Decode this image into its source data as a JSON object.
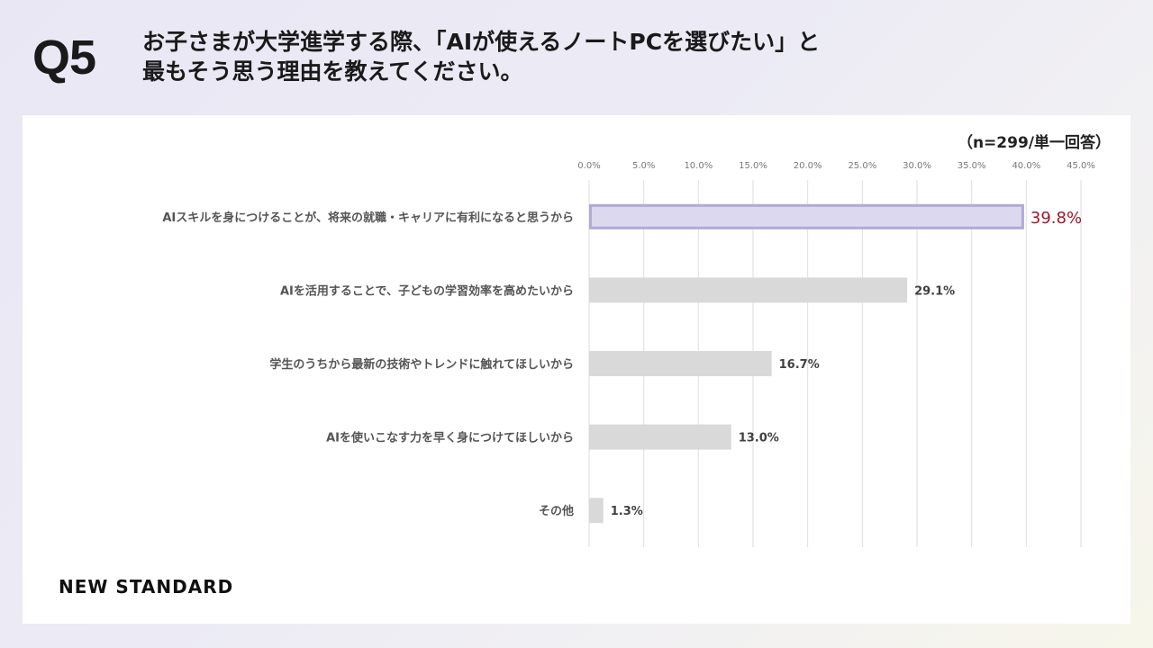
{
  "header": {
    "question_no": "Q5",
    "title_line1": "お子さまが大学進学する際、「AIが使えるノートPCを選びたい」と",
    "title_line2": "最もそう思う理由を教えてください。"
  },
  "panel": {
    "sample_note": "（n=299/単一回答）",
    "brand": "NEW STANDARD"
  },
  "colors": {
    "highlight_fill": "#dcd8ee",
    "highlight_border": "#b1a9d6",
    "highlight_label": "#a3162a",
    "bar_fill": "#d9d9d9",
    "grid": "#dedede",
    "tick_text": "#777777",
    "label_text": "#555555",
    "value_text": "#404040"
  },
  "chart_data": {
    "type": "bar",
    "orientation": "horizontal",
    "categories": [
      "AIスキルを身につけることが、将来の就職・キャリアに有利になると思うから",
      "AIを活用することで、子どもの学習効率を高めたいから",
      "学生のうちから最新の技術やトレンドに触れてほしいから",
      "AIを使いこなす力を早く身につけてほしいから",
      "その他"
    ],
    "values": [
      39.8,
      29.1,
      16.7,
      13.0,
      1.3
    ],
    "value_labels": [
      "39.8%",
      "29.1%",
      "16.7%",
      "13.0%",
      "1.3%"
    ],
    "highlight_index": 0,
    "xlim": [
      0,
      45
    ],
    "xticks": [
      0,
      5,
      10,
      15,
      20,
      25,
      30,
      35,
      40,
      45
    ],
    "xtick_labels": [
      "0.0%",
      "5.0%",
      "10.0%",
      "15.0%",
      "20.0%",
      "25.0%",
      "30.0%",
      "35.0%",
      "40.0%",
      "45.0%"
    ],
    "grid": true,
    "legend": false
  }
}
